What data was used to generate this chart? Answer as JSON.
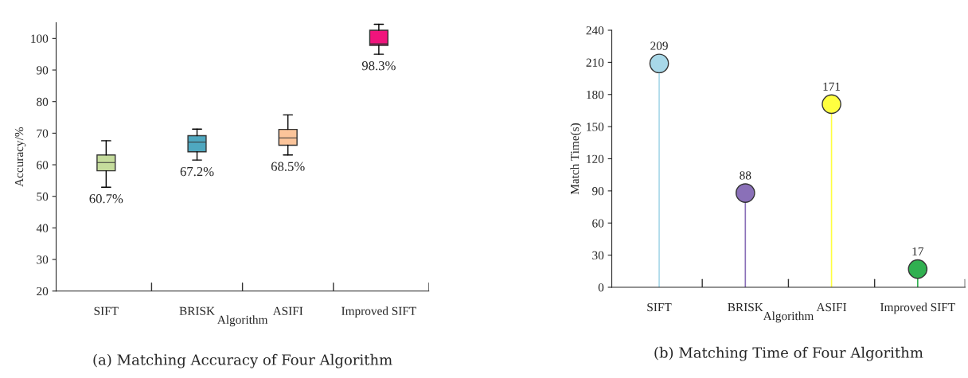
{
  "chart_data": [
    {
      "type": "box",
      "title": "(a) Matching Accuracy of Four Algorithm",
      "xlabel": "Algorithm",
      "ylabel": "Accuracy/%",
      "categories": [
        "SIFT",
        "BRISK",
        "ASIFI",
        "Improved SIFT"
      ],
      "boxes": [
        {
          "low": 52.9,
          "q1": 58.1,
          "median": 60.7,
          "q3": 63.1,
          "high": 67.6
        },
        {
          "low": 61.5,
          "q1": 64.1,
          "median": 67.2,
          "q3": 69.2,
          "high": 71.3
        },
        {
          "low": 63.1,
          "q1": 66.2,
          "median": 68.5,
          "q3": 71.2,
          "high": 75.8
        },
        {
          "low": 95.0,
          "q1": 97.8,
          "median": 98.3,
          "q3": 102.6,
          "high": 104.5
        }
      ],
      "colors": [
        "#c5dc9c",
        "#4fa8c0",
        "#fbc49a",
        "#f0147c"
      ],
      "annotations": [
        "60.7%",
        "67.2%",
        "68.5%",
        "98.3%"
      ],
      "ylim": [
        20,
        105
      ],
      "yticks": [
        20,
        30,
        40,
        50,
        60,
        70,
        80,
        90,
        100
      ],
      "grid": false
    },
    {
      "type": "lollipop",
      "title": "(b) Matching Time of Four Algorithm",
      "xlabel": "Algorithm",
      "ylabel": "Match Time(s)",
      "categories": [
        "SIFT",
        "BRISK",
        "ASIFI",
        "Improved SIFT"
      ],
      "values": [
        209,
        88,
        171,
        17
      ],
      "colors": [
        "#a8d8e8",
        "#8a70b8",
        "#ffff40",
        "#30b050"
      ],
      "data_labels": true,
      "ylim": [
        0,
        240
      ],
      "yticks": [
        0,
        30,
        60,
        90,
        120,
        150,
        180,
        210,
        240
      ],
      "grid": false
    }
  ]
}
